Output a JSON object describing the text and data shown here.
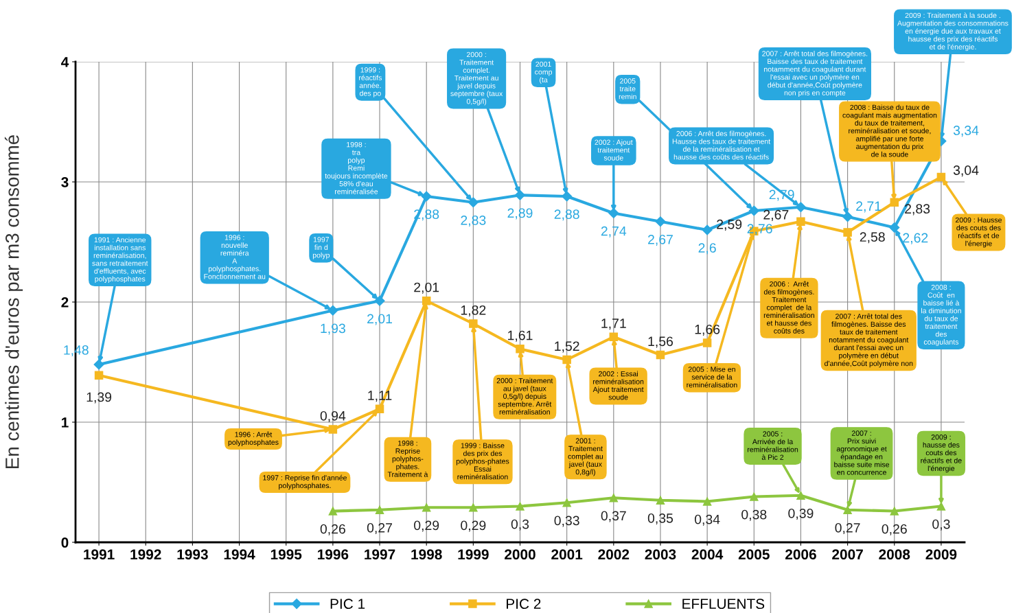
{
  "chart_data": {
    "type": "line",
    "ylabel": "En centimes d'euros par m3 consommé",
    "xlim": [
      1990.5,
      2009.5
    ],
    "xticks": [
      1991,
      1992,
      1993,
      1994,
      1995,
      1996,
      1997,
      1998,
      1999,
      2000,
      2001,
      2002,
      2003,
      2004,
      2005,
      2006,
      2007,
      2008,
      2009
    ],
    "ylim": [
      0,
      4
    ],
    "yticks": [
      0,
      1,
      2,
      3,
      4
    ],
    "grid": true,
    "legend": "bottom",
    "series": [
      {
        "name": "PIC 1",
        "color": "#29a8e0",
        "marker": "diamond",
        "x": [
          1991,
          1996,
          1997,
          1998,
          1999,
          2000,
          2001,
          2002,
          2003,
          2004,
          2005,
          2006,
          2007,
          2008,
          2009
        ],
        "values": [
          1.48,
          1.93,
          2.01,
          2.88,
          2.83,
          2.89,
          2.88,
          2.74,
          2.67,
          2.6,
          2.76,
          2.79,
          2.71,
          2.62,
          3.34
        ],
        "value_labels": [
          "1,48",
          "1,93",
          "2,01",
          "2,88",
          "2,83",
          "2,89",
          "2,88",
          "2,74",
          "2,67",
          "2,6",
          "2,76",
          "2,79",
          "2,71",
          "2,62",
          "3,34"
        ]
      },
      {
        "name": "PIC 2",
        "color": "#f5b820",
        "marker": "square",
        "x": [
          1991,
          1996,
          1997,
          1998,
          1999,
          2000,
          2001,
          2002,
          2003,
          2004,
          2005,
          2006,
          2007,
          2008,
          2009
        ],
        "values": [
          1.39,
          0.94,
          1.11,
          2.01,
          1.82,
          1.61,
          1.52,
          1.71,
          1.56,
          1.66,
          2.59,
          2.67,
          2.58,
          2.83,
          3.04
        ],
        "value_labels": [
          "1,39",
          "0,94",
          "1,11",
          "2,01",
          "1,82",
          "1,61",
          "1,52",
          "1,71",
          "1,56",
          "1,66",
          "2,59",
          "2,67",
          "2,58",
          "2,83",
          "3,04"
        ]
      },
      {
        "name": "EFFLUENTS",
        "color": "#8dc63f",
        "marker": "triangle",
        "x": [
          1996,
          1997,
          1998,
          1999,
          2000,
          2001,
          2002,
          2003,
          2004,
          2005,
          2006,
          2007,
          2008,
          2009
        ],
        "values": [
          0.26,
          0.27,
          0.29,
          0.29,
          0.3,
          0.33,
          0.37,
          0.35,
          0.34,
          0.38,
          0.39,
          0.27,
          0.26,
          0.3
        ],
        "value_labels": [
          "0,26",
          "0,27",
          "0,29",
          "0,29",
          "0,3",
          "0,33",
          "0,37",
          "0,35",
          "0,34",
          "0,38",
          "0,39",
          "0,27",
          "0,26",
          "0,3"
        ]
      }
    ],
    "annotations": [
      {
        "text": "1991 : Ancienne\ninstallation sans\nreminéralisation,\nsans retraitement\nd'effluents, avec\npolyphosphates",
        "x": 1991,
        "y": 1.48
      },
      {
        "text": "1996 :\nnouvelle\nreminéra\nA\npolyphosphates.\nFonctionnement au",
        "x": 1996,
        "y": 1.93
      },
      {
        "text": "1997\nfin d\npolyp",
        "x": 1997,
        "y": 2.01
      },
      {
        "text": "1998 :\ntra\npolyp\nRemi\ntoujours incomplète\n58% d'eau\nreminéralisée",
        "x": 1998,
        "y": 2.88
      },
      {
        "text": "1999 :\nréactifs\nannée.\ndes po",
        "x": 1999,
        "y": 2.83
      },
      {
        "text": "2000 :\nTraitement\ncomplet.\nTraitement au\njavel depuis\nseptembre (taux\n0,5g/l)",
        "x": 2000,
        "y": 2.89
      },
      {
        "text": "2001\ncomp\n(ta",
        "x": 2001,
        "y": 2.88
      },
      {
        "text": "2002 : Ajout\ntraitement\nsoude",
        "x": 2002,
        "y": 2.74
      },
      {
        "text": "2005\ntraite\nremin",
        "x": 2005,
        "y": 2.76
      },
      {
        "text": "2006 : Arrêt des filmogènes.\nHausse des taux de traitement\nde la reminéralisation et\nhausse des coûts des réactifs",
        "x": 2006,
        "y": 2.79
      },
      {
        "text": "2007 : Arrêt total des filmogènes.\nBaisse des taux de traitement\nnotamment du coagulant durant\nl'essai avec un polymère en\ndébut d'année,Coût polymère\nnon pris en compte",
        "x": 2007,
        "y": 2.71
      },
      {
        "text": "2009 : Traitement à la soude .\nAugmentation des consommations\nen énergie due aux travaux et\nhausse des prix des réactifs\net de l'énergie.",
        "x": 2009,
        "y": 3.34
      },
      {
        "text": "2008 :\nCoût  en\nbaisse lié à\nla diminution\ndu taux de\ntraitement\ndes\ncoagulants",
        "x": 2008,
        "y": 2.62
      },
      {
        "text": "1996 : Arrêt\npolyphosphates",
        "x": 1996,
        "y": 0.94
      },
      {
        "text": "1997 : Reprise fin d'année\npolyphosphates.",
        "x": 1997,
        "y": 1.11
      },
      {
        "text": "1998 :\nReprise\npolyphos-\nphates.\nTraitement à",
        "x": 1998,
        "y": 2.01
      },
      {
        "text": "1999 : Baisse\ndes prix des\npolyphos-phates\nEssai\nreminéralisation",
        "x": 1999,
        "y": 1.82
      },
      {
        "text": "2000 : Traitement\nau javel (taux\n0,5g/l) depuis\nseptembre. Arrêt\nreminéralisation",
        "x": 2000,
        "y": 1.61
      },
      {
        "text": "2001 :\nTraitement\ncomplet au\njavel (taux\n0,8g/l)",
        "x": 2001,
        "y": 1.52
      },
      {
        "text": "2002 : Essai\nreminéralisation\nAjout traitement\nsoude",
        "x": 2002,
        "y": 1.71
      },
      {
        "text": "2005 : Mise en\nservice de la\nreminéralisation",
        "x": 2005,
        "y": 2.59
      },
      {
        "text": "2006 :  Arrêt\ndes filmogènes.\nTraitement\ncomplet  de la\nreminéralisation\net hausse des\ncoûts des",
        "x": 2006,
        "y": 2.67
      },
      {
        "text": "2007 : Arrêt total des\nfilmogènes. Baisse des\ntaux de traitement\nnotamment du coagulant\ndurant l'essai avec un\npolymère en début\nd'année,Coût polymère non",
        "x": 2007,
        "y": 2.58
      },
      {
        "text": "2008 : Baisse du taux de\ncoagulant mais augmentation\ndu taux de traitement,\nreminéralisation et soude,\namplifié par une forte\naugmentation du prix\nde la soude",
        "x": 2008,
        "y": 2.83
      },
      {
        "text": "2009 : Hausse\ndes couts des\nréactifs et de\nl'énergie",
        "x": 2009,
        "y": 3.04
      },
      {
        "text": "2005 :\nArrivée de la\nreminéralisation\nà Pic 2",
        "x": 2006,
        "y": 0.39
      },
      {
        "text": "2007 :\nPrix suivi\nagronomique et\népandage en\nbaisse suite mise\nen concurrence",
        "x": 2007,
        "y": 0.27
      },
      {
        "text": "2009 :\nhausse des\ncouts des\nréactifs et de\nl'énergie",
        "x": 2009,
        "y": 0.3
      }
    ]
  }
}
